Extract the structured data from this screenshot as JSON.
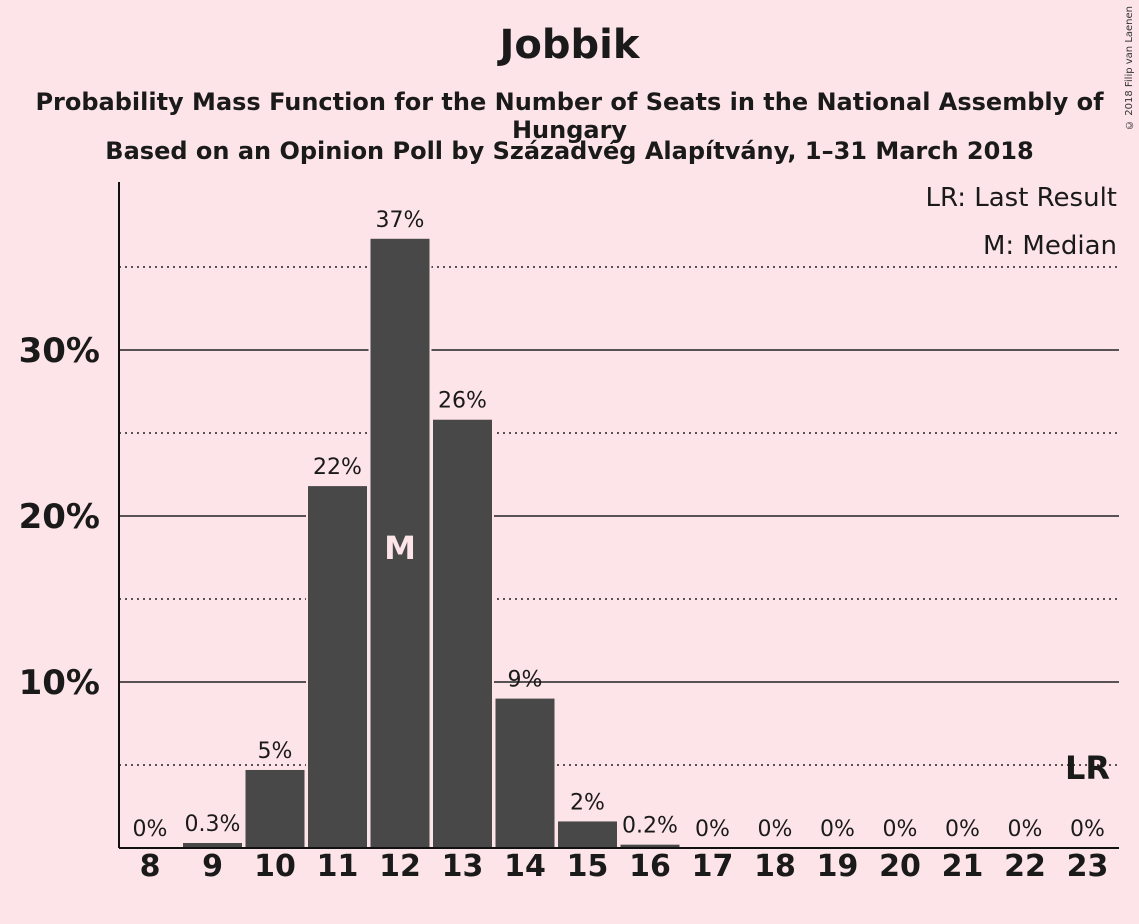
{
  "chart_data": {
    "type": "bar",
    "title": "Jobbik",
    "subtitle": "Probability Mass Function for the Number of Seats in the National Assembly of Hungary",
    "subtitle2": "Based on an Opinion Poll by Századvég Alapítvány, 1–31 March 2018",
    "copyright": "© 2018 Filip van Laenen",
    "categories": [
      "8",
      "9",
      "10",
      "11",
      "12",
      "13",
      "14",
      "15",
      "16",
      "17",
      "18",
      "19",
      "20",
      "21",
      "22",
      "23"
    ],
    "values": [
      0,
      0.3,
      4.7,
      21.8,
      36.7,
      25.8,
      9.0,
      1.6,
      0.2,
      0,
      0,
      0,
      0,
      0,
      0,
      0
    ],
    "labels": [
      "0%",
      "0.3%",
      "5%",
      "22%",
      "37%",
      "26%",
      "9%",
      "2%",
      "0.2%",
      "0%",
      "0%",
      "0%",
      "0%",
      "0%",
      "0%",
      "0%"
    ],
    "ylim": [
      0,
      40
    ],
    "yticks": [
      10,
      20,
      30
    ],
    "ytick_labels": [
      "10%",
      "20%",
      "30%"
    ],
    "minor_gridlines": [
      5,
      15,
      25,
      35
    ],
    "median_index": 4,
    "median_marker": "M",
    "last_result_category": "23",
    "last_result_line_value": 5,
    "last_result_marker": "LR",
    "legend": [
      "LR: Last Result",
      "M: Median"
    ],
    "legend_position": "top-right",
    "bar_color": "#484848",
    "background_color": "#fce4e8",
    "median_color": "#fce4e8"
  }
}
